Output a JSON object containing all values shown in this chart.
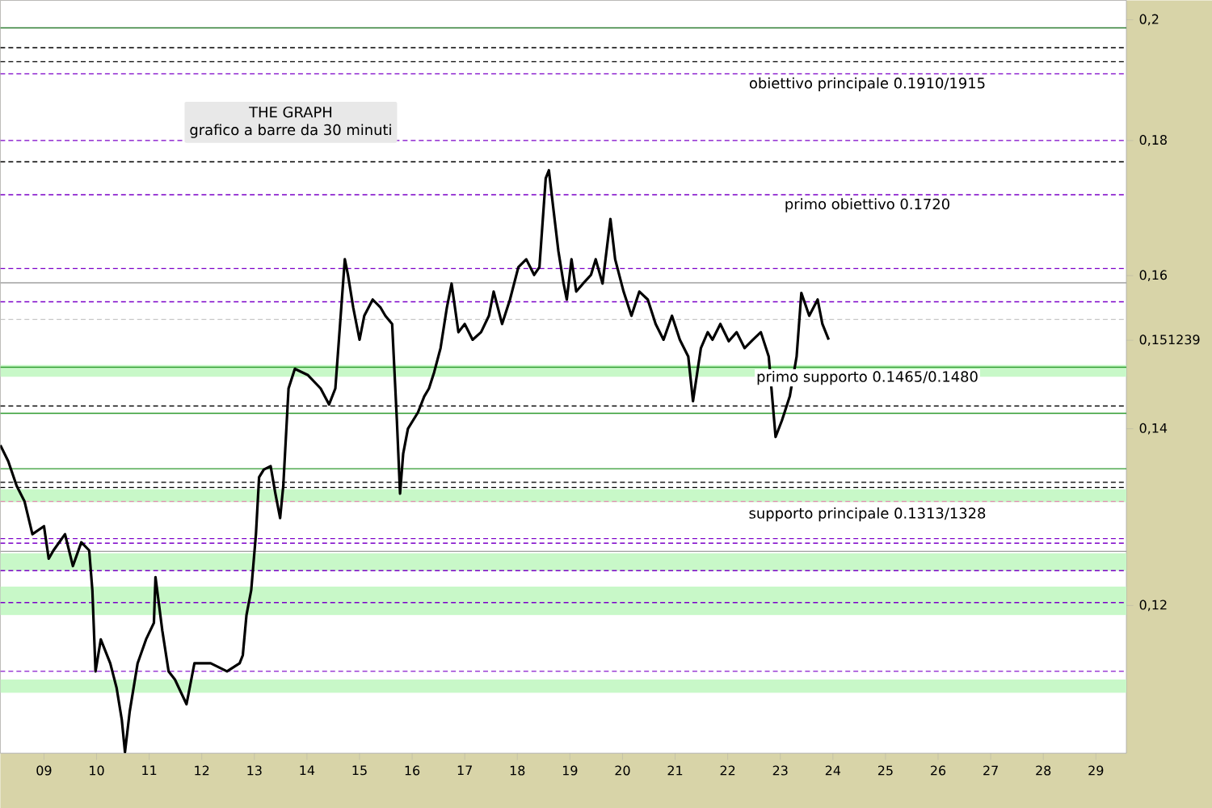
{
  "chart_data": {
    "type": "line",
    "title": "THE GRAPH",
    "subtitle": "grafico a barre da 30 minuti",
    "x": [
      8.17,
      8.32,
      8.48,
      8.63,
      8.78,
      9.0,
      9.09,
      9.18,
      9.4,
      9.55,
      9.71,
      9.86,
      9.92,
      9.98,
      10.08,
      10.26,
      10.38,
      10.48,
      10.54,
      10.63,
      10.78,
      10.94,
      11.09,
      11.12,
      11.25,
      11.37,
      11.49,
      11.71,
      11.86,
      12.17,
      12.48,
      12.72,
      12.78,
      12.85,
      12.94,
      13.03,
      13.09,
      13.18,
      13.31,
      13.4,
      13.49,
      13.55,
      13.65,
      13.77,
      14.02,
      14.26,
      14.42,
      14.54,
      14.63,
      14.72,
      14.78,
      14.88,
      15.0,
      15.09,
      15.25,
      15.4,
      15.49,
      15.62,
      15.71,
      15.77,
      15.83,
      15.92,
      16.11,
      16.23,
      16.32,
      16.42,
      16.54,
      16.66,
      16.75,
      16.88,
      17.0,
      17.15,
      17.31,
      17.46,
      17.55,
      17.71,
      17.86,
      18.02,
      18.17,
      18.32,
      18.42,
      18.54,
      18.6,
      18.69,
      18.78,
      18.88,
      18.94,
      19.03,
      19.12,
      19.25,
      19.4,
      19.49,
      19.62,
      19.77,
      19.86,
      20.02,
      20.17,
      20.32,
      20.48,
      20.63,
      20.78,
      20.94,
      21.09,
      21.25,
      21.34,
      21.49,
      21.62,
      21.71,
      21.86,
      22.02,
      22.17,
      22.32,
      22.48,
      22.63,
      22.78,
      22.91,
      23.03,
      23.18,
      23.31,
      23.4,
      23.55,
      23.71,
      23.8,
      23.92
    ],
    "series": [
      {
        "color": "#000000",
        "values": [
          0.138,
          0.1361,
          0.1332,
          0.1314,
          0.1277,
          0.1286,
          0.125,
          0.1259,
          0.1277,
          0.1242,
          0.1268,
          0.1259,
          0.1216,
          0.1133,
          0.1165,
          0.1141,
          0.1117,
          0.1086,
          0.1056,
          0.1094,
          0.1141,
          0.1165,
          0.1182,
          0.123,
          0.1174,
          0.1133,
          0.1125,
          0.1101,
          0.1141,
          0.1141,
          0.1133,
          0.1141,
          0.1149,
          0.119,
          0.1216,
          0.1277,
          0.1342,
          0.1351,
          0.1355,
          0.1323,
          0.1295,
          0.1332,
          0.145,
          0.1475,
          0.1467,
          0.145,
          0.143,
          0.145,
          0.1534,
          0.1623,
          0.1601,
          0.1556,
          0.1513,
          0.1545,
          0.1567,
          0.1556,
          0.1545,
          0.1534,
          0.141,
          0.1323,
          0.137,
          0.14,
          0.142,
          0.144,
          0.145,
          0.1471,
          0.1502,
          0.1556,
          0.1589,
          0.1523,
          0.1534,
          0.1513,
          0.1523,
          0.1545,
          0.1578,
          0.1534,
          0.1567,
          0.1612,
          0.1623,
          0.1601,
          0.1612,
          0.1742,
          0.1754,
          0.1693,
          0.1635,
          0.1589,
          0.1567,
          0.1623,
          0.1578,
          0.1589,
          0.1601,
          0.1623,
          0.1589,
          0.1681,
          0.1623,
          0.1578,
          0.1545,
          0.1578,
          0.1567,
          0.1534,
          0.1513,
          0.1545,
          0.1513,
          0.1491,
          0.1434,
          0.1502,
          0.1523,
          0.1513,
          0.1534,
          0.1511,
          0.1523,
          0.1502,
          0.1513,
          0.1523,
          0.1491,
          0.139,
          0.141,
          0.144,
          0.1491,
          0.1576,
          0.1545,
          0.1567,
          0.1534,
          0.1513
        ]
      }
    ],
    "xlim": [
      8.17,
      29.58
    ],
    "ylim": [
      0.1055,
      0.2034
    ],
    "log": true,
    "xticks": [
      {
        "value": 9,
        "label": "09"
      },
      10,
      11,
      12,
      13,
      14,
      15,
      16,
      17,
      18,
      19,
      20,
      21,
      22,
      23,
      24,
      25,
      26,
      27,
      28,
      29
    ],
    "yticks": [
      {
        "value": 0.12,
        "label": "0,12"
      },
      {
        "value": 0.14,
        "label": "0,14"
      },
      {
        "value": 0.151239,
        "label": "0,151239"
      },
      {
        "value": 0.16,
        "label": "0,16"
      },
      {
        "value": 0.18,
        "label": "0,18"
      },
      {
        "value": 0.2,
        "label": "0,2"
      }
    ],
    "grid": false,
    "marker": "none",
    "line_style": "solid",
    "ref_lines": [
      {
        "axis": "y",
        "value": 0.1986,
        "color": "#2e7d32",
        "line_style": "solid"
      },
      {
        "axis": "y",
        "value": 0.1952,
        "color": "#000000",
        "line_style": "dashed"
      },
      {
        "axis": "y",
        "value": 0.1928,
        "color": "#000000",
        "line_style": "dashed"
      },
      {
        "axis": "y",
        "value": 0.1908,
        "color": "#7b00c8",
        "line_style": "dashed",
        "label": "obiettivo principale 0.1910/1915"
      },
      {
        "axis": "y",
        "value": 0.18,
        "color": "#7b00c8",
        "line_style": "dashed"
      },
      {
        "axis": "y",
        "value": 0.1767,
        "color": "#000000",
        "line_style": "dashed"
      },
      {
        "axis": "y",
        "value": 0.1717,
        "color": "#7b00c8",
        "line_style": "dashed",
        "label": "primo obiettivo 0.1720"
      },
      {
        "axis": "y",
        "value": 0.161,
        "color": "#7b00c8",
        "line_style": "dashed"
      },
      {
        "axis": "y",
        "value": 0.159,
        "color": "#a0a0a0",
        "line_style": "solid"
      },
      {
        "axis": "y",
        "value": 0.1564,
        "color": "#7b00c8",
        "line_style": "dashed"
      },
      {
        "axis": "y",
        "value": 0.154,
        "color": "#c8c8c8",
        "line_style": "dashed"
      },
      {
        "axis": "y",
        "value": 0.1477,
        "color": "#2e9a2e",
        "line_style": "solid",
        "label": "primo supporto 0.1465/0.1480"
      },
      {
        "axis": "y",
        "value": 0.1428,
        "color": "#000000",
        "line_style": "dashed"
      },
      {
        "axis": "y",
        "value": 0.1419,
        "color": "#2e9a2e",
        "line_style": "solid"
      },
      {
        "axis": "y",
        "value": 0.1352,
        "color": "#2e9a2e",
        "line_style": "solid"
      },
      {
        "axis": "y",
        "value": 0.1336,
        "color": "#000000",
        "line_style": "dashed"
      },
      {
        "axis": "y",
        "value": 0.133,
        "color": "#000000",
        "line_style": "dashed"
      },
      {
        "axis": "y",
        "value": 0.1314,
        "color": "#e08cb0",
        "line_style": "dashed"
      },
      {
        "axis": "y",
        "value": 0.1272,
        "color": "#7b00c8",
        "line_style": "dashed"
      },
      {
        "axis": "y",
        "value": 0.1267,
        "color": "#7b00c8",
        "line_style": "dashed"
      },
      {
        "axis": "y",
        "value": 0.1258,
        "color": "#a0a0a0",
        "line_style": "solid"
      },
      {
        "axis": "y",
        "value": 0.1237,
        "color": "#7b00c8",
        "line_style": "dashed"
      },
      {
        "axis": "y",
        "value": 0.1203,
        "color": "#7b00c8",
        "line_style": "dashed"
      },
      {
        "axis": "y",
        "value": 0.1133,
        "color": "#7b00c8",
        "line_style": "dashed"
      }
    ],
    "bands": [
      {
        "axis": "y",
        "from": 0.1465,
        "to": 0.148,
        "color": "#c8f8c8"
      },
      {
        "axis": "y",
        "from": 0.1313,
        "to": 0.1328,
        "color": "#c8f8c8",
        "label": "supporto principale 0.1313/1328"
      },
      {
        "axis": "y",
        "from": 0.1237,
        "to": 0.1256,
        "color": "#c8f8c8"
      },
      {
        "axis": "y",
        "from": 0.119,
        "to": 0.122,
        "color": "#c8f8c8"
      },
      {
        "axis": "y",
        "from": 0.1112,
        "to": 0.1125,
        "color": "#c8f8c8"
      }
    ]
  }
}
